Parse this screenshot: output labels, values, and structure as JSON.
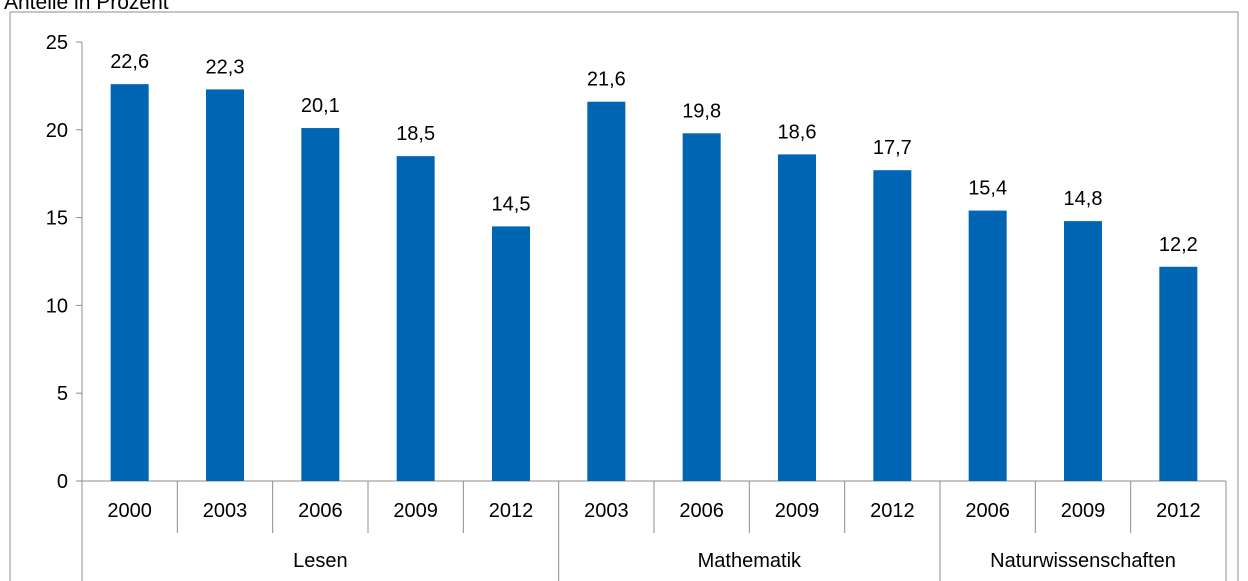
{
  "chart_data": {
    "type": "bar",
    "title": "Anteile in Prozent",
    "xlabel": "",
    "ylabel": "",
    "ylim": [
      0,
      25
    ],
    "yticks": [
      0,
      5,
      10,
      15,
      20,
      25
    ],
    "grid": false,
    "legend": "none",
    "groups": [
      {
        "label": "Lesen",
        "count": 5
      },
      {
        "label": "Mathematik",
        "count": 4
      },
      {
        "label": "Naturwissenschaften",
        "count": 3
      }
    ],
    "categories": [
      "2000",
      "2003",
      "2006",
      "2009",
      "2012",
      "2003",
      "2006",
      "2009",
      "2012",
      "2006",
      "2009",
      "2012"
    ],
    "values": [
      22.6,
      22.3,
      20.1,
      18.5,
      14.5,
      21.6,
      19.8,
      18.6,
      17.7,
      15.4,
      14.8,
      12.2
    ],
    "value_labels": [
      "22,6",
      "22,3",
      "20,1",
      "18,5",
      "14,5",
      "21,6",
      "19,8",
      "18,6",
      "17,7",
      "15,4",
      "14,8",
      "12,2"
    ],
    "colors": {
      "bar": "#0066b3",
      "axis": "#8c8c8c",
      "text": "#000000"
    }
  }
}
